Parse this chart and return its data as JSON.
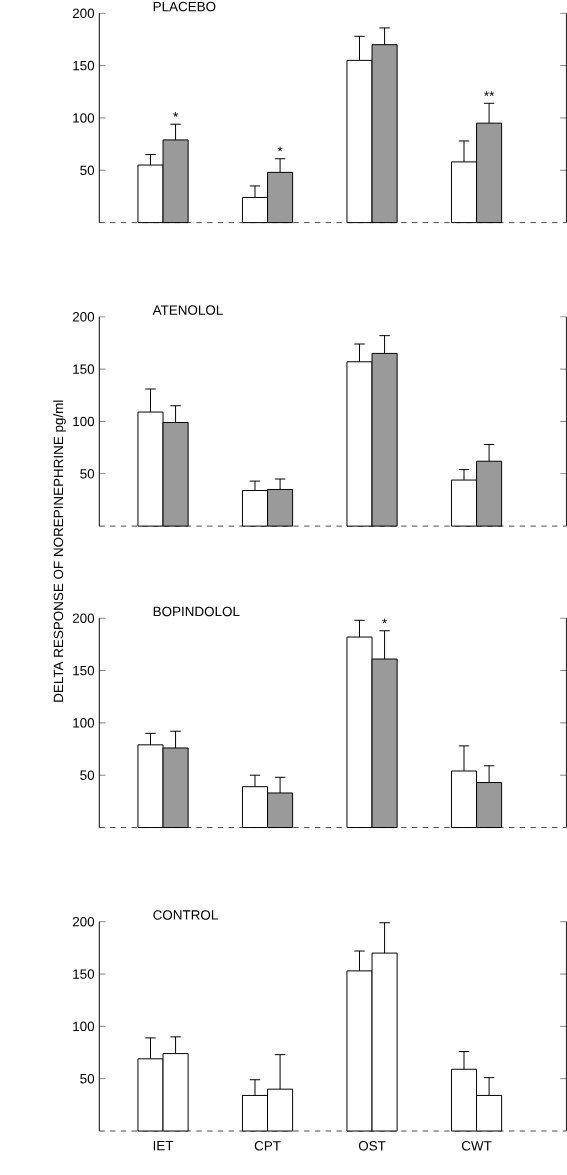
{
  "chart_data": [
    {
      "type": "bar",
      "title": "PLACEBO",
      "categories": [
        "IET",
        "CPT",
        "OST",
        "CWT"
      ],
      "series": [
        {
          "color": "#ffffff",
          "values": [
            55,
            24,
            155,
            58
          ],
          "errors": [
            10,
            11,
            23,
            20
          ]
        },
        {
          "color": "#9a9a9a",
          "values": [
            79,
            48,
            170,
            95
          ],
          "errors": [
            15,
            13,
            16,
            19
          ]
        }
      ],
      "ylim": [
        0,
        200
      ],
      "yticks": [
        50,
        100,
        150,
        200
      ],
      "tick_labels": "y",
      "annotations": [
        {
          "text": "*",
          "x": "IET",
          "y": 79
        },
        {
          "text": "*",
          "x": "CPT",
          "y": 48
        },
        {
          "text": "**",
          "x": "CWT",
          "y": 95
        }
      ]
    },
    {
      "type": "bar",
      "title": "ATENOLOL",
      "ylabel": "DELTA RESPONSE OF NOREPINEPHRINE pg/ml",
      "categories": [
        "IET",
        "CPT",
        "OST",
        "CWT"
      ],
      "series": [
        {
          "color": "#ffffff",
          "values": [
            109,
            34,
            157,
            44
          ],
          "errors": [
            22,
            9,
            17,
            10
          ]
        },
        {
          "color": "#9a9a9a",
          "values": [
            99,
            35,
            165,
            62
          ],
          "errors": [
            16,
            10,
            17,
            16
          ]
        }
      ],
      "ylim": [
        0,
        200
      ],
      "yticks": [
        50,
        100,
        150,
        200
      ],
      "tick_labels": "y"
    },
    {
      "type": "bar",
      "title": "BOPINDOLOL",
      "categories": [
        "IET",
        "CPT",
        "OST",
        "CWT"
      ],
      "series": [
        {
          "color": "#ffffff",
          "values": [
            79,
            39,
            182,
            54
          ],
          "errors": [
            11,
            11,
            16,
            24
          ]
        },
        {
          "color": "#9a9a9a",
          "values": [
            76,
            33,
            161,
            43
          ],
          "errors": [
            16,
            15,
            27,
            16
          ]
        }
      ],
      "ylim": [
        0,
        200
      ],
      "yticks": [
        50,
        100,
        150,
        200
      ],
      "tick_labels": "y",
      "annotations": [
        {
          "text": "*",
          "x": "OST",
          "y": 161
        }
      ]
    },
    {
      "type": "bar",
      "title": "CONTROL",
      "categories": [
        "IET",
        "CPT",
        "OST",
        "CWT"
      ],
      "series": [
        {
          "color": "#ffffff",
          "values": [
            69,
            34,
            153,
            59
          ],
          "errors": [
            20,
            15,
            19,
            17
          ]
        },
        {
          "color": "#ffffff",
          "values": [
            74,
            40,
            170,
            34
          ],
          "errors": [
            16,
            33,
            29,
            17
          ]
        }
      ],
      "ylim": [
        0,
        200
      ],
      "yticks": [
        50,
        100,
        150,
        200
      ]
    }
  ]
}
